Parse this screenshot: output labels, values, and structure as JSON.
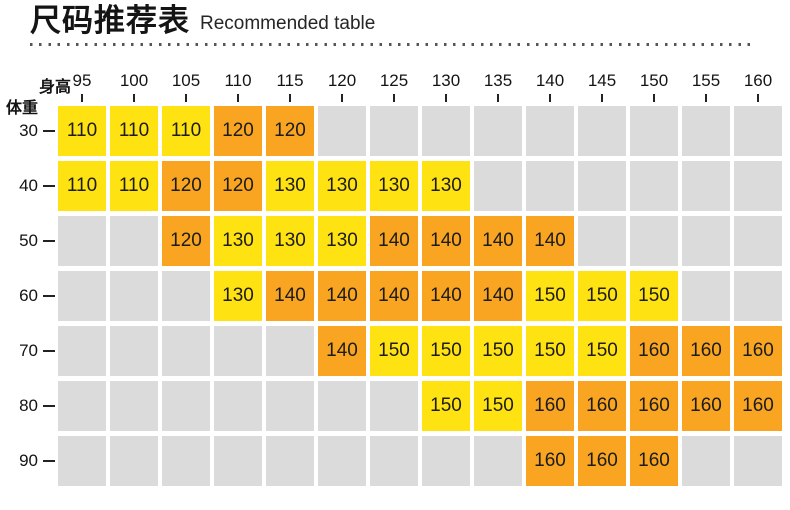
{
  "header": {
    "title_zh": "尺码推荐表",
    "title_en": "Recommended table"
  },
  "chart_data": {
    "type": "heatmap",
    "title": "尺码推荐表",
    "subtitle": "Recommended table",
    "x_axis_label": "身高",
    "y_axis_label": "体重",
    "x_ticks": [
      95,
      100,
      105,
      110,
      115,
      120,
      125,
      130,
      135,
      140,
      145,
      150,
      155,
      160
    ],
    "y_ticks": [
      30,
      40,
      50,
      60,
      70,
      80,
      90
    ],
    "legend_note": "cell value = recommended size; yellow/orange alternate by size; gray = no recommendation",
    "palette": {
      "yellow": "#FFE211",
      "orange": "#F9A521",
      "empty": "#DBDBDB",
      "text": "#1c1c1c"
    },
    "rows": [
      {
        "weight": 30,
        "cells": [
          {
            "size": 110,
            "tone": "yellow"
          },
          {
            "size": 110,
            "tone": "yellow"
          },
          {
            "size": 110,
            "tone": "yellow"
          },
          {
            "size": 120,
            "tone": "orange"
          },
          {
            "size": 120,
            "tone": "orange"
          },
          null,
          null,
          null,
          null,
          null,
          null,
          null,
          null,
          null
        ]
      },
      {
        "weight": 40,
        "cells": [
          {
            "size": 110,
            "tone": "yellow"
          },
          {
            "size": 110,
            "tone": "yellow"
          },
          {
            "size": 120,
            "tone": "orange"
          },
          {
            "size": 120,
            "tone": "orange"
          },
          {
            "size": 130,
            "tone": "yellow"
          },
          {
            "size": 130,
            "tone": "yellow"
          },
          {
            "size": 130,
            "tone": "yellow"
          },
          {
            "size": 130,
            "tone": "yellow"
          },
          null,
          null,
          null,
          null,
          null,
          null
        ]
      },
      {
        "weight": 50,
        "cells": [
          null,
          null,
          {
            "size": 120,
            "tone": "orange"
          },
          {
            "size": 130,
            "tone": "yellow"
          },
          {
            "size": 130,
            "tone": "yellow"
          },
          {
            "size": 130,
            "tone": "yellow"
          },
          {
            "size": 140,
            "tone": "orange"
          },
          {
            "size": 140,
            "tone": "orange"
          },
          {
            "size": 140,
            "tone": "orange"
          },
          {
            "size": 140,
            "tone": "orange"
          },
          null,
          null,
          null,
          null
        ]
      },
      {
        "weight": 60,
        "cells": [
          null,
          null,
          null,
          {
            "size": 130,
            "tone": "yellow"
          },
          {
            "size": 140,
            "tone": "orange"
          },
          {
            "size": 140,
            "tone": "orange"
          },
          {
            "size": 140,
            "tone": "orange"
          },
          {
            "size": 140,
            "tone": "orange"
          },
          {
            "size": 140,
            "tone": "orange"
          },
          {
            "size": 150,
            "tone": "yellow"
          },
          {
            "size": 150,
            "tone": "yellow"
          },
          {
            "size": 150,
            "tone": "yellow"
          },
          null,
          null
        ]
      },
      {
        "weight": 70,
        "cells": [
          null,
          null,
          null,
          null,
          null,
          {
            "size": 140,
            "tone": "orange"
          },
          {
            "size": 150,
            "tone": "yellow"
          },
          {
            "size": 150,
            "tone": "yellow"
          },
          {
            "size": 150,
            "tone": "yellow"
          },
          {
            "size": 150,
            "tone": "yellow"
          },
          {
            "size": 150,
            "tone": "yellow"
          },
          {
            "size": 160,
            "tone": "orange"
          },
          {
            "size": 160,
            "tone": "orange"
          },
          {
            "size": 160,
            "tone": "orange"
          }
        ]
      },
      {
        "weight": 80,
        "cells": [
          null,
          null,
          null,
          null,
          null,
          null,
          null,
          {
            "size": 150,
            "tone": "yellow"
          },
          {
            "size": 150,
            "tone": "yellow"
          },
          {
            "size": 160,
            "tone": "orange"
          },
          {
            "size": 160,
            "tone": "orange"
          },
          {
            "size": 160,
            "tone": "orange"
          },
          {
            "size": 160,
            "tone": "orange"
          },
          {
            "size": 160,
            "tone": "orange"
          }
        ]
      },
      {
        "weight": 90,
        "cells": [
          null,
          null,
          null,
          null,
          null,
          null,
          null,
          null,
          null,
          {
            "size": 160,
            "tone": "orange"
          },
          {
            "size": 160,
            "tone": "orange"
          },
          {
            "size": 160,
            "tone": "orange"
          },
          null,
          null
        ]
      }
    ]
  }
}
